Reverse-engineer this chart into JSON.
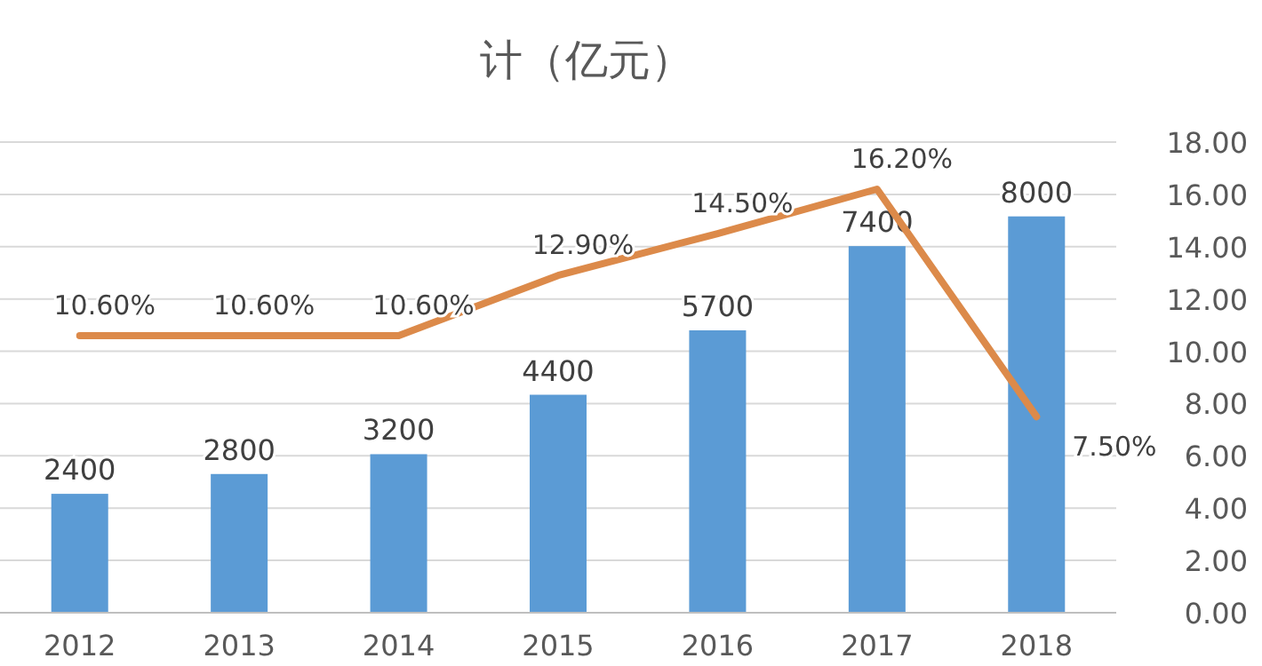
{
  "chart_data": {
    "type": "bar",
    "title": "计（亿元）",
    "categories": [
      "2012",
      "2013",
      "2014",
      "2015",
      "2016",
      "2017",
      "2018"
    ],
    "grid": true,
    "ylim": [
      0,
      9500
    ],
    "y2lim": [
      0,
      18
    ],
    "y2ticks": [
      {
        "value": 0,
        "label": "0.00"
      },
      {
        "value": 2,
        "label": "2.00"
      },
      {
        "value": 4,
        "label": "4.00"
      },
      {
        "value": 6,
        "label": "6.00"
      },
      {
        "value": 8,
        "label": "8.00"
      },
      {
        "value": 10,
        "label": "10.00"
      },
      {
        "value": 12,
        "label": "12.00"
      },
      {
        "value": 14,
        "label": "14.00"
      },
      {
        "value": 16,
        "label": "16.00"
      },
      {
        "value": 18,
        "label": "18.00"
      }
    ],
    "series": [
      {
        "color": "#5b9bd5",
        "values": [
          2400,
          2800,
          3200,
          4400,
          5700,
          7400,
          8000
        ],
        "value_labels": [
          "2400",
          "2800",
          "3200",
          "4400",
          "5700",
          "7400",
          "8000"
        ]
      },
      {
        "type": "line",
        "axis": "y2",
        "color": "#dc8a4a",
        "values": [
          10.6,
          10.6,
          10.6,
          12.9,
          14.5,
          16.2,
          7.5
        ],
        "value_labels": [
          "10.60%",
          "10.60%",
          "10.60%",
          "12.90%",
          "14.50%",
          "16.20%",
          "7.50%"
        ]
      }
    ]
  }
}
